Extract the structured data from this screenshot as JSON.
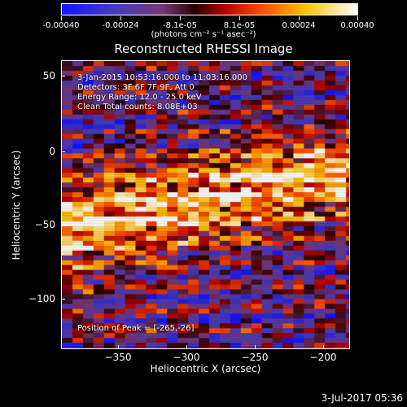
{
  "colorbar": {
    "ticks": [
      "-0.00040",
      "-0.00024",
      "-8.1e-05",
      "8.1e-05",
      "0.00024",
      "0.00040"
    ],
    "units": "(photons cm⁻² s⁻¹ asec⁻²)"
  },
  "title": "Reconstructed RHESSI Image",
  "annotations": {
    "time": "3-Jan-2015 10:53:16.000 to 11:03:16.000",
    "detectors": "Detectors: 3F 6F 7F 9F, Att 0",
    "energy": "Energy Range: 12.0 - 25.0 keV",
    "algorithm": "Clean     Total counts: 8.08E+03",
    "peak": "Position of Peak = [-265,-26]"
  },
  "axes": {
    "xlabel": "Heliocentric X (arcsec)",
    "ylabel": "Heliocentric Y (arcsec)",
    "xticks": [
      "−350",
      "−300",
      "−250",
      "−200"
    ],
    "yticks": [
      "50",
      "0",
      "−50",
      "−100"
    ]
  },
  "footer": {
    "date": "3-Jul-2017 05:36"
  }
}
